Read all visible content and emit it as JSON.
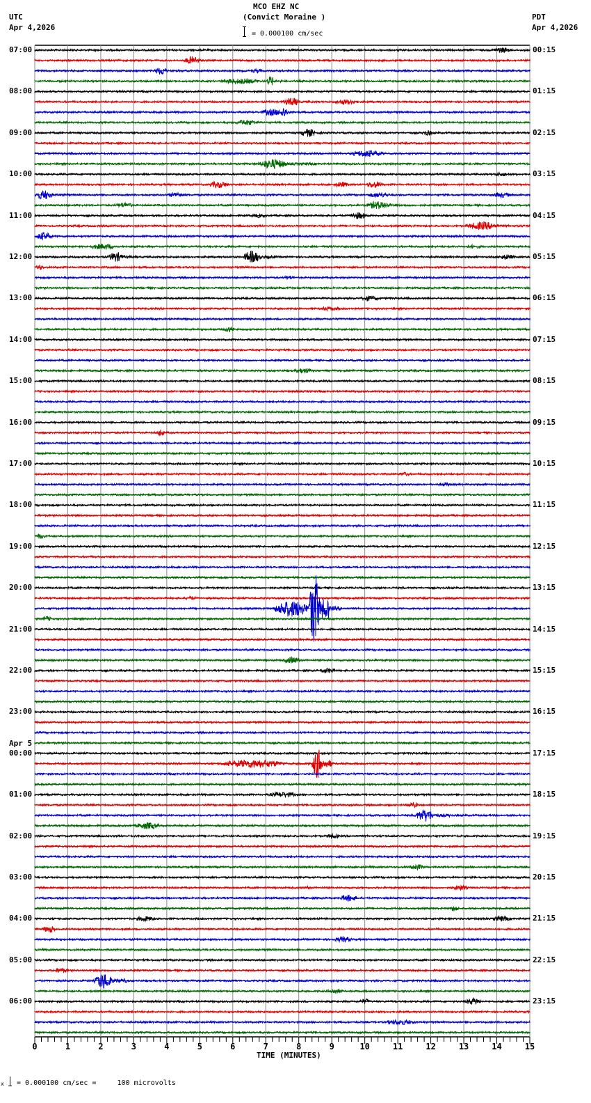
{
  "header": {
    "station": "MCO EHZ NC",
    "site": "(Convict Moraine )",
    "left_tz": "UTC",
    "left_date": "Apr 4,2026",
    "right_tz": "PDT",
    "right_date": "Apr 4,2026",
    "scale_text": "= 0.000100 cm/sec"
  },
  "footer": {
    "scale_text": "= 0.000100 cm/sec =     100 microvolts",
    "prefix": "x"
  },
  "colors": {
    "trace_cycle": [
      "#000000",
      "#dd0000",
      "#0000cc",
      "#006600"
    ],
    "grid": "#888888",
    "frame": "#000000"
  },
  "chart_data": {
    "type": "line",
    "title": "MCO EHZ NC (Convict Moraine ) helicorder",
    "xlabel": "TIME (MINUTES)",
    "ylabel": "",
    "x_ticks": [
      0,
      1,
      2,
      3,
      4,
      5,
      6,
      7,
      8,
      9,
      10,
      11,
      12,
      13,
      14,
      15
    ],
    "xlim": [
      0,
      15
    ],
    "grid": true,
    "traces_per_hour": 4,
    "trace_minutes": 15,
    "left_labels": [
      {
        "row": 0,
        "text": "07:00"
      },
      {
        "row": 4,
        "text": "08:00"
      },
      {
        "row": 8,
        "text": "09:00"
      },
      {
        "row": 12,
        "text": "10:00"
      },
      {
        "row": 16,
        "text": "11:00"
      },
      {
        "row": 20,
        "text": "12:00"
      },
      {
        "row": 24,
        "text": "13:00"
      },
      {
        "row": 28,
        "text": "14:00"
      },
      {
        "row": 32,
        "text": "15:00"
      },
      {
        "row": 36,
        "text": "16:00"
      },
      {
        "row": 40,
        "text": "17:00"
      },
      {
        "row": 44,
        "text": "18:00"
      },
      {
        "row": 48,
        "text": "19:00"
      },
      {
        "row": 52,
        "text": "20:00"
      },
      {
        "row": 56,
        "text": "21:00"
      },
      {
        "row": 60,
        "text": "22:00"
      },
      {
        "row": 64,
        "text": "23:00"
      },
      {
        "row": 68,
        "text": "00:00",
        "date": "Apr 5"
      },
      {
        "row": 72,
        "text": "01:00"
      },
      {
        "row": 76,
        "text": "02:00"
      },
      {
        "row": 80,
        "text": "03:00"
      },
      {
        "row": 84,
        "text": "04:00"
      },
      {
        "row": 88,
        "text": "05:00"
      },
      {
        "row": 92,
        "text": "06:00"
      }
    ],
    "right_labels": [
      "00:15",
      "01:15",
      "02:15",
      "03:15",
      "04:15",
      "05:15",
      "06:15",
      "07:15",
      "08:15",
      "09:15",
      "10:15",
      "11:15",
      "12:15",
      "13:15",
      "14:15",
      "15:15",
      "16:15",
      "17:15",
      "18:15",
      "19:15",
      "20:15",
      "21:15",
      "22:15",
      "23:15"
    ],
    "scale": "0.000100 cm/sec = 100 microvolts",
    "events": [
      {
        "row": 0,
        "start": 13.8,
        "end": 15,
        "amp": 4
      },
      {
        "row": 1,
        "start": 4.5,
        "end": 5.5,
        "amp": 6
      },
      {
        "row": 2,
        "start": 3.6,
        "end": 4.4,
        "amp": 6
      },
      {
        "row": 2,
        "start": 6.5,
        "end": 7.3,
        "amp": 3
      },
      {
        "row": 3,
        "start": 5.5,
        "end": 8,
        "amp": 4
      },
      {
        "row": 3,
        "start": 7.0,
        "end": 7.5,
        "amp": 7
      },
      {
        "row": 5,
        "start": 7.5,
        "end": 8.5,
        "amp": 6
      },
      {
        "row": 5,
        "start": 9,
        "end": 10.5,
        "amp": 4
      },
      {
        "row": 6,
        "start": 6.8,
        "end": 8.2,
        "amp": 5
      },
      {
        "row": 6,
        "start": 7.4,
        "end": 7.9,
        "amp": 8
      },
      {
        "row": 7,
        "start": 6,
        "end": 7.5,
        "amp": 4
      },
      {
        "row": 8,
        "start": 8.0,
        "end": 9.0,
        "amp": 6
      },
      {
        "row": 8,
        "start": 11.7,
        "end": 12.4,
        "amp": 4
      },
      {
        "row": 10,
        "start": 9.5,
        "end": 11.5,
        "amp": 5
      },
      {
        "row": 11,
        "start": 6.7,
        "end": 8.5,
        "amp": 7
      },
      {
        "row": 12,
        "start": 13.8,
        "end": 15,
        "amp": 3
      },
      {
        "row": 13,
        "start": 5.2,
        "end": 6.5,
        "amp": 5
      },
      {
        "row": 13,
        "start": 9,
        "end": 10,
        "amp": 4
      },
      {
        "row": 13,
        "start": 10,
        "end": 11,
        "amp": 5
      },
      {
        "row": 14,
        "start": 0,
        "end": 1,
        "amp": 7
      },
      {
        "row": 14,
        "start": 4,
        "end": 5,
        "amp": 4
      },
      {
        "row": 14,
        "start": 10,
        "end": 11.5,
        "amp": 4
      },
      {
        "row": 14,
        "start": 13.8,
        "end": 15,
        "amp": 4
      },
      {
        "row": 15,
        "start": 2.4,
        "end": 3.5,
        "amp": 4
      },
      {
        "row": 15,
        "start": 10,
        "end": 11.5,
        "amp": 6
      },
      {
        "row": 16,
        "start": 6.5,
        "end": 7.5,
        "amp": 3
      },
      {
        "row": 16,
        "start": 9.5,
        "end": 10.6,
        "amp": 5
      },
      {
        "row": 17,
        "start": 13.0,
        "end": 15,
        "amp": 6
      },
      {
        "row": 18,
        "start": 0,
        "end": 1,
        "amp": 6
      },
      {
        "row": 19,
        "start": 1.5,
        "end": 3.5,
        "amp": 4
      },
      {
        "row": 19,
        "start": 13,
        "end": 14,
        "amp": 3
      },
      {
        "row": 20,
        "start": 2.2,
        "end": 3.1,
        "amp": 7
      },
      {
        "row": 20,
        "start": 6.3,
        "end": 7.3,
        "amp": 9
      },
      {
        "row": 20,
        "start": 14,
        "end": 15,
        "amp": 4
      },
      {
        "row": 21,
        "start": 0,
        "end": 0.5,
        "amp": 4
      },
      {
        "row": 22,
        "start": 7.5,
        "end": 8.2,
        "amp": 3
      },
      {
        "row": 24,
        "start": 9.8,
        "end": 11,
        "amp": 4
      },
      {
        "row": 25,
        "start": 8.5,
        "end": 10,
        "amp": 3
      },
      {
        "row": 27,
        "start": 5.7,
        "end": 6.4,
        "amp": 4
      },
      {
        "row": 31,
        "start": 7.8,
        "end": 9,
        "amp": 4
      },
      {
        "row": 37,
        "start": 3.7,
        "end": 4.1,
        "amp": 6
      },
      {
        "row": 41,
        "start": 11,
        "end": 11.7,
        "amp": 3
      },
      {
        "row": 42,
        "start": 12.2,
        "end": 13,
        "amp": 3
      },
      {
        "row": 47,
        "start": 0,
        "end": 0.6,
        "amp": 4
      },
      {
        "row": 53,
        "start": 4.5,
        "end": 5.3,
        "amp": 3
      },
      {
        "row": 54,
        "start": 7.2,
        "end": 9.3,
        "amp": 12
      },
      {
        "row": 54,
        "start": 8.3,
        "end": 8.9,
        "amp": 55
      },
      {
        "row": 55,
        "start": 0.2,
        "end": 0.8,
        "amp": 4
      },
      {
        "row": 59,
        "start": 7.5,
        "end": 8.5,
        "amp": 5
      },
      {
        "row": 60,
        "start": 8.6,
        "end": 9.6,
        "amp": 4
      },
      {
        "row": 69,
        "start": 5.5,
        "end": 9.5,
        "amp": 6
      },
      {
        "row": 69,
        "start": 8.4,
        "end": 9.0,
        "amp": 22
      },
      {
        "row": 72,
        "start": 7.0,
        "end": 8.8,
        "amp": 4
      },
      {
        "row": 73,
        "start": 11.2,
        "end": 12,
        "amp": 4
      },
      {
        "row": 74,
        "start": 11.5,
        "end": 12.6,
        "amp": 9
      },
      {
        "row": 75,
        "start": 3.0,
        "end": 4.5,
        "amp": 5
      },
      {
        "row": 76,
        "start": 8.8,
        "end": 9.6,
        "amp": 4
      },
      {
        "row": 79,
        "start": 11.3,
        "end": 12.3,
        "amp": 4
      },
      {
        "row": 81,
        "start": 8.2,
        "end": 8.5,
        "amp": 3
      },
      {
        "row": 81,
        "start": 12.6,
        "end": 13.6,
        "amp": 4
      },
      {
        "row": 82,
        "start": 9.2,
        "end": 10.3,
        "amp": 5
      },
      {
        "row": 83,
        "start": 12.5,
        "end": 13.2,
        "amp": 4
      },
      {
        "row": 84,
        "start": 3.0,
        "end": 4.2,
        "amp": 4
      },
      {
        "row": 84,
        "start": 13.8,
        "end": 15,
        "amp": 4
      },
      {
        "row": 85,
        "start": 0.2,
        "end": 1.0,
        "amp": 5
      },
      {
        "row": 86,
        "start": 9,
        "end": 10.2,
        "amp": 4
      },
      {
        "row": 89,
        "start": 0.5,
        "end": 1.5,
        "amp": 4
      },
      {
        "row": 90,
        "start": 1.8,
        "end": 2.8,
        "amp": 12
      },
      {
        "row": 91,
        "start": 8.8,
        "end": 9.8,
        "amp": 4
      },
      {
        "row": 92,
        "start": 9.8,
        "end": 10.5,
        "amp": 4
      },
      {
        "row": 92,
        "start": 13,
        "end": 14,
        "amp": 5
      },
      {
        "row": 94,
        "start": 10.5,
        "end": 12.5,
        "amp": 4
      }
    ]
  }
}
